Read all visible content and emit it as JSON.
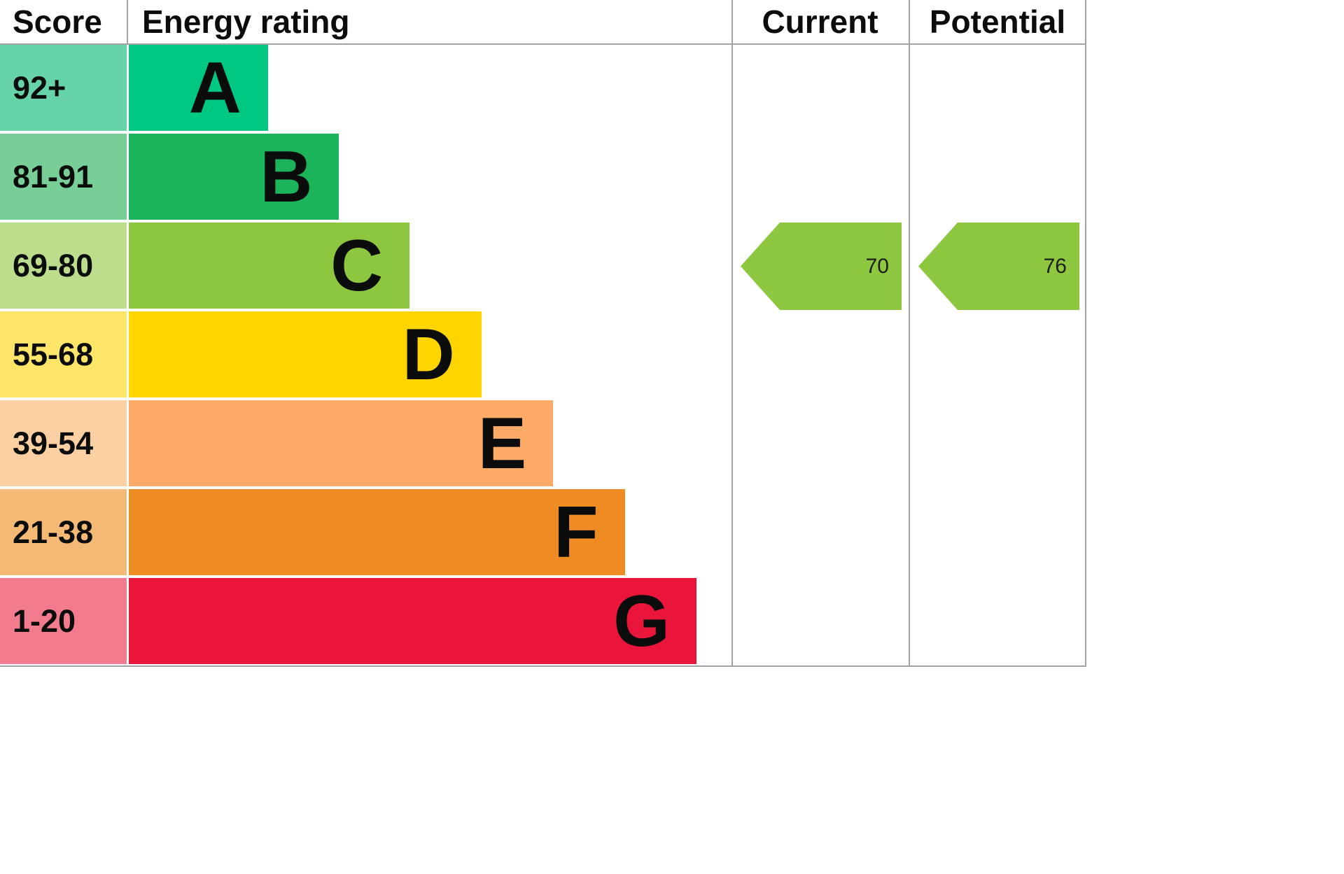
{
  "chart_data": {
    "type": "bar",
    "columns": {
      "score": "Score",
      "energy_rating": "Energy rating",
      "current": "Current",
      "potential": "Potential"
    },
    "bands": [
      {
        "score_range": "92+",
        "letter": "A",
        "bar_color": "#00c781",
        "score_color": "#66d3a9",
        "bar_width_pct": 23.1
      },
      {
        "score_range": "81-91",
        "letter": "B",
        "bar_color": "#1cb45b",
        "score_color": "#77ce96",
        "bar_width_pct": 34.9
      },
      {
        "score_range": "69-80",
        "letter": "C",
        "bar_color": "#8dc63f",
        "score_color": "#bbdd8c",
        "bar_width_pct": 46.6
      },
      {
        "score_range": "55-68",
        "letter": "D",
        "bar_color": "#ffd500",
        "score_color": "#ffe669",
        "bar_width_pct": 58.5
      },
      {
        "score_range": "39-54",
        "letter": "E",
        "bar_color": "#fcaa65",
        "score_color": "#fdd0a3",
        "bar_width_pct": 70.4
      },
      {
        "score_range": "21-38",
        "letter": "F",
        "bar_color": "#ef8b23",
        "score_color": "#f5b976",
        "bar_width_pct": 82.3
      },
      {
        "score_range": "1-20",
        "letter": "G",
        "bar_color": "#e9153b",
        "score_color": "#f27b8e",
        "bar_width_pct": 94.2
      }
    ],
    "current": {
      "value": 70,
      "display": "70",
      "band": "C",
      "arrow_color": "#8dc63f"
    },
    "potential": {
      "value": 76,
      "display": "76",
      "band": "C",
      "arrow_color": "#8dc63f"
    }
  }
}
